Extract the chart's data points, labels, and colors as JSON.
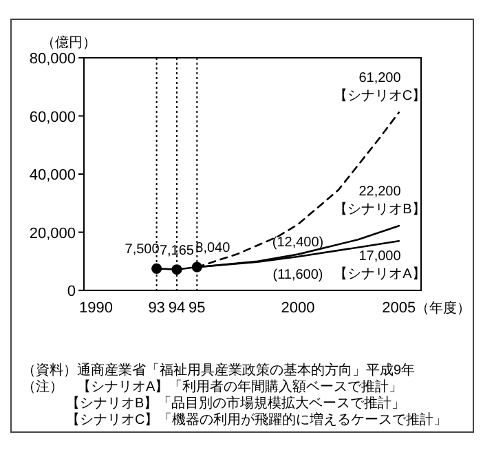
{
  "chart_data": {
    "type": "line",
    "ylabel": "（億円）",
    "xlabel": "（年度）",
    "xlim": [
      1989.4,
      2006.1
    ],
    "ylim": [
      0,
      80000
    ],
    "xticks": [
      1990,
      {
        "value": 1993,
        "label": "93"
      },
      {
        "value": 1994,
        "label": "94"
      },
      {
        "value": 1995,
        "label": "95"
      },
      2000,
      2005
    ],
    "yticks": [
      0,
      {
        "value": 20000,
        "label": "20,000"
      },
      {
        "value": 40000,
        "label": "40,000"
      },
      {
        "value": 60000,
        "label": "60,000"
      },
      {
        "value": 80000,
        "label": "80,000"
      }
    ],
    "grid": false,
    "series": [
      {
        "color": "#000000",
        "marker": "circle",
        "line_style": "solid",
        "x": [
          1993,
          1994,
          1995
        ],
        "values": [
          7500,
          7165,
          8040
        ],
        "value_labels": [
          "7,500",
          "7,165",
          "8,040"
        ]
      },
      {
        "name": "【シナリオA】",
        "color": "#000000",
        "marker": "none",
        "line_style": "solid",
        "x": [
          1995,
          1998,
          2000,
          2003,
          2005
        ],
        "values": [
          8000,
          9800,
          11600,
          14800,
          17000
        ],
        "value_labels": [
          null,
          null,
          "(11,600)",
          null,
          "17,000"
        ]
      },
      {
        "name": "【シナリオB】",
        "color": "#000000",
        "marker": "none",
        "line_style": "solid",
        "x": [
          1995,
          1998,
          2000,
          2003,
          2005
        ],
        "values": [
          8000,
          10000,
          12400,
          17500,
          22200
        ],
        "value_labels": [
          null,
          null,
          "(12,400)",
          null,
          "22,200"
        ]
      },
      {
        "name": "【シナリオC】",
        "color": "#000000",
        "marker": "none",
        "line_style": "dashed",
        "x": [
          1995,
          1997,
          1999,
          2000,
          2002,
          2004,
          2005
        ],
        "values": [
          8000,
          12500,
          18500,
          22700,
          34500,
          52000,
          61200
        ],
        "value_labels": [
          null,
          null,
          null,
          null,
          null,
          null,
          "61,200"
        ]
      }
    ],
    "ref_lines": [
      {
        "axis": "x",
        "value": 1993,
        "line_style": "dotted",
        "color": "#000000"
      },
      {
        "axis": "x",
        "value": 1994,
        "line_style": "dotted",
        "color": "#000000"
      },
      {
        "axis": "x",
        "value": 1995,
        "line_style": "dotted",
        "color": "#000000"
      }
    ],
    "annotations": [
      "（資料）通商産業省「福祉用具産業政策の基本的方向」平成9年",
      "（注）　【シナリオA】「利用者の年間購入額ベースで推計」",
      "【シナリオB】「品目別の市場規模拡大ベースで推計」",
      "【シナリオC】「機器の利用が飛躍的に増えるケースで推計」"
    ]
  }
}
